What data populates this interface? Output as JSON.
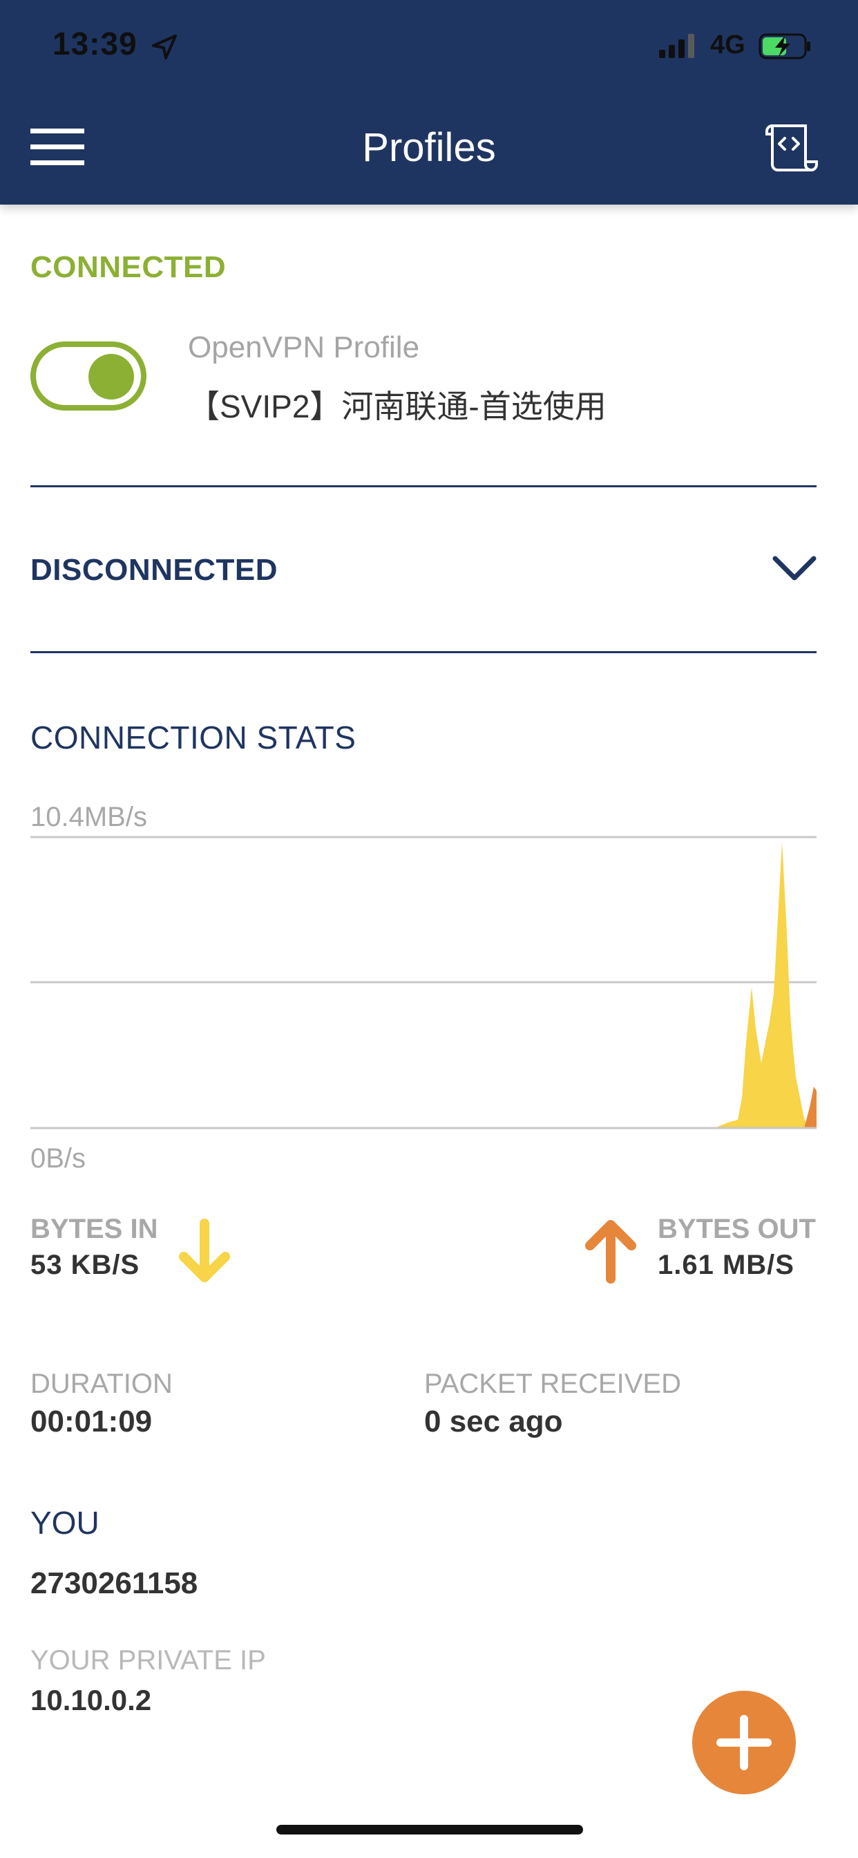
{
  "status_bar": {
    "time": "13:39",
    "network": "4G",
    "icons": [
      "location-arrow-icon",
      "signal-icon",
      "battery-charging-icon"
    ]
  },
  "header": {
    "title": "Profiles",
    "left_icon": "hamburger-menu-icon",
    "right_icon": "log-scroll-icon"
  },
  "connected_section": {
    "label": "CONNECTED",
    "toggle_on": true,
    "profile_type": "OpenVPN Profile",
    "profile_name": "【SVIP2】河南联通-首选使用"
  },
  "disconnected_section": {
    "label": "DISCONNECTED",
    "icon": "chevron-down-icon"
  },
  "stats": {
    "title": "CONNECTION STATS",
    "chart_max_label": "10.4MB/s",
    "chart_min_label": "0B/s",
    "bytes_in_label": "BYTES IN",
    "bytes_in_value": "53 KB/S",
    "bytes_out_label": "BYTES OUT",
    "bytes_out_value": "1.61 MB/S",
    "duration_label": "DURATION",
    "duration_value": "00:01:09",
    "packet_label": "PACKET RECEIVED",
    "packet_value": "0 sec ago"
  },
  "you": {
    "label": "YOU",
    "value": "2730261158",
    "private_ip_label": "YOUR PRIVATE IP",
    "private_ip_value": "10.10.0.2"
  },
  "fab": {
    "icon": "plus-icon"
  },
  "colors": {
    "header_bg": "#1f3561",
    "connected_green": "#8bb034",
    "bytes_in_yellow": "#f7d448",
    "bytes_out_orange": "#e6863a",
    "gray_text": "#a8a8a8"
  }
}
